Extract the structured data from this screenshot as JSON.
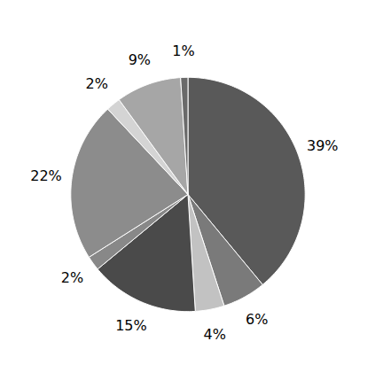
{
  "chart_data": {
    "type": "pie",
    "values": [
      39,
      6,
      4,
      15,
      2,
      22,
      2,
      9,
      1
    ],
    "value_labels": [
      "39%",
      "6%",
      "4%",
      "15%",
      "2%",
      "22%",
      "2%",
      "9%",
      "1%"
    ],
    "colors": [
      "#595959",
      "#7a7a7a",
      "#c2c2c2",
      "#4a4a4a",
      "#888888",
      "#8c8c8c",
      "#d4d4d4",
      "#a6a6a6",
      "#6a6a6a"
    ],
    "data_labels": true
  }
}
